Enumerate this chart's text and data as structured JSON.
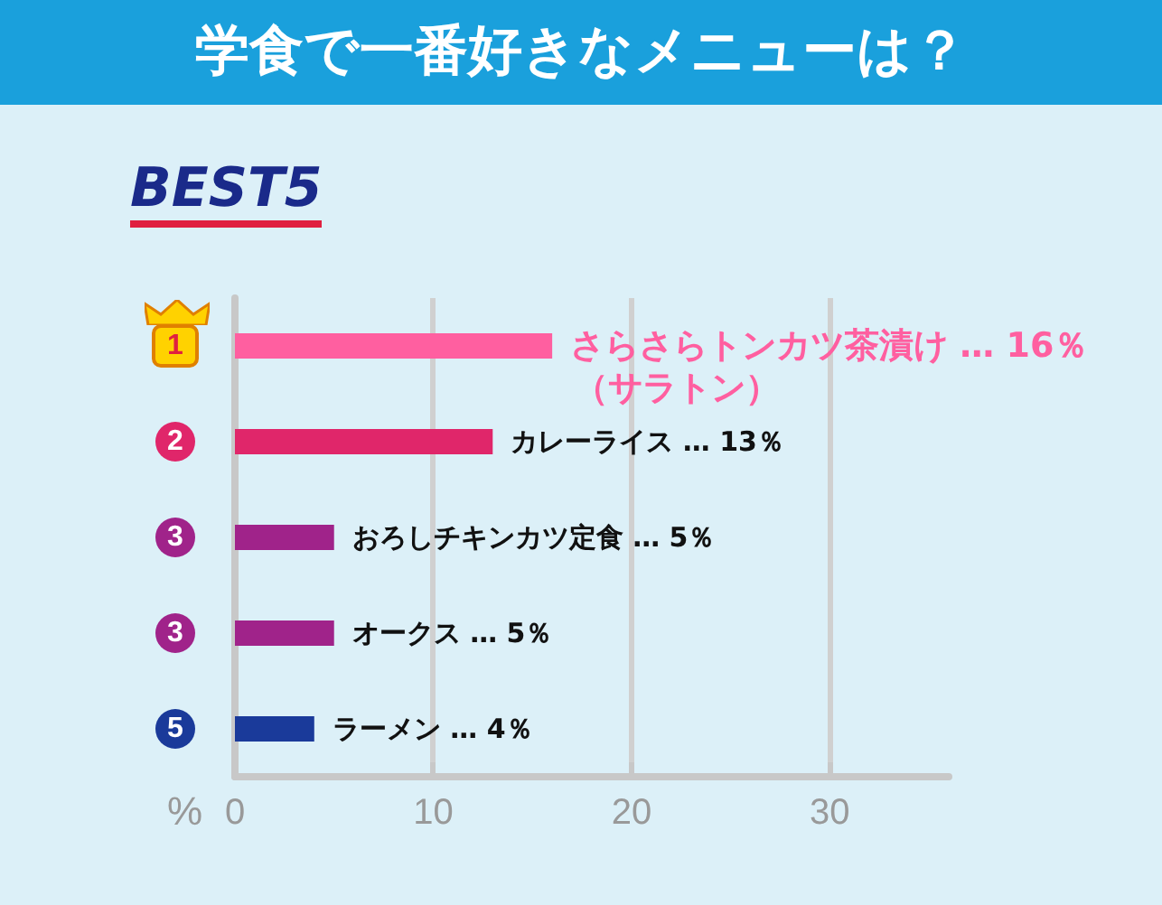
{
  "chart_data": {
    "type": "bar",
    "orientation": "horizontal",
    "title": "学食で一番好きなメニューは？",
    "subtitle": "BEST5",
    "xlabel": "%",
    "categories": [
      "1",
      "2",
      "3",
      "3",
      "5"
    ],
    "values": [
      16,
      13,
      5,
      5,
      4
    ],
    "colors": [
      "#ff5fa0",
      "#e0266a",
      "#a0238a",
      "#a0238a",
      "#1a3a9a"
    ],
    "annotations": [
      "（サラトン）"
    ],
    "value_labels": [
      "さらさらトンカツ茶漬け … 16％",
      "カレーライス … 13％",
      "おろしチキンカツ定食 … 5％",
      "オークス … 5％",
      "ラーメン … 4％"
    ],
    "xlim": [
      0,
      36
    ],
    "xticks": [
      0,
      10,
      20,
      30
    ],
    "grid": "x"
  }
}
